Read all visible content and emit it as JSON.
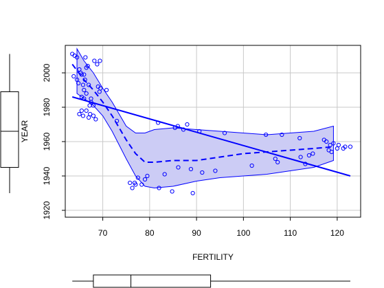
{
  "chart_data": {
    "type": "scatter",
    "xlabel": "FERTILITY",
    "ylabel": "YEAR",
    "xlim": [
      62,
      125
    ],
    "ylim": [
      1916,
      2016
    ],
    "xticks": [
      70,
      80,
      90,
      100,
      110,
      120
    ],
    "yticks": [
      1920,
      1940,
      1960,
      1980,
      2000
    ],
    "grid": true,
    "colors": {
      "points": "#0000ff",
      "lines": "#0000ff",
      "band": "#ccccf5",
      "grid": "#c8c8c8"
    },
    "points": [
      [
        63.5,
        2011
      ],
      [
        64.0,
        2010
      ],
      [
        64.5,
        2009
      ],
      [
        63.8,
        1998
      ],
      [
        64.5,
        1996
      ],
      [
        64.8,
        1994
      ],
      [
        65.0,
        2002
      ],
      [
        65.3,
        2000
      ],
      [
        65.5,
        1999
      ],
      [
        66.0,
        1999
      ],
      [
        66.3,
        2009
      ],
      [
        66.5,
        2003
      ],
      [
        66.8,
        2004
      ],
      [
        66.2,
        1996
      ],
      [
        65.8,
        1993
      ],
      [
        66.0,
        1990
      ],
      [
        66.5,
        1988
      ],
      [
        66.0,
        1985
      ],
      [
        65.5,
        1986
      ],
      [
        67.0,
        1993
      ],
      [
        67.5,
        1985
      ],
      [
        67.2,
        1981
      ],
      [
        67.5,
        1983
      ],
      [
        66.5,
        1978
      ],
      [
        65.5,
        1978
      ],
      [
        65.0,
        1976
      ],
      [
        65.8,
        1975
      ],
      [
        67.0,
        1974
      ],
      [
        67.3,
        1976
      ],
      [
        68.0,
        1975
      ],
      [
        68.5,
        1973
      ],
      [
        68.0,
        1981
      ],
      [
        68.2,
        2007
      ],
      [
        68.8,
        2005
      ],
      [
        69.4,
        2007
      ],
      [
        69.0,
        1992
      ],
      [
        69.5,
        1991
      ],
      [
        69.3,
        1989
      ],
      [
        70.8,
        1990
      ],
      [
        73.0,
        1972
      ],
      [
        75.8,
        1936
      ],
      [
        76.3,
        1933
      ],
      [
        76.8,
        1936
      ],
      [
        77.0,
        1935
      ],
      [
        77.5,
        1939
      ],
      [
        78.3,
        1935
      ],
      [
        79.0,
        1938
      ],
      [
        79.5,
        1940
      ],
      [
        81.8,
        1971
      ],
      [
        82.0,
        1933
      ],
      [
        83.2,
        1941
      ],
      [
        84.8,
        1931
      ],
      [
        85.4,
        1968
      ],
      [
        86.0,
        1969
      ],
      [
        86.1,
        1945
      ],
      [
        87.2,
        1967
      ],
      [
        88.0,
        1970
      ],
      [
        88.8,
        1944
      ],
      [
        89.2,
        1930
      ],
      [
        90.6,
        1966
      ],
      [
        91.2,
        1942
      ],
      [
        94.0,
        1943
      ],
      [
        96.0,
        1965
      ],
      [
        101.8,
        1946
      ],
      [
        104.8,
        1964
      ],
      [
        106.8,
        1950
      ],
      [
        107.3,
        1948
      ],
      [
        108.2,
        1964
      ],
      [
        112.0,
        1962
      ],
      [
        112.2,
        1951
      ],
      [
        113.2,
        1947
      ],
      [
        114.0,
        1952
      ],
      [
        114.8,
        1953
      ],
      [
        117.2,
        1961
      ],
      [
        117.7,
        1960
      ],
      [
        118.2,
        1955
      ],
      [
        118.5,
        1958
      ],
      [
        118.8,
        1954
      ],
      [
        119.2,
        1959
      ],
      [
        120.0,
        1956
      ],
      [
        120.3,
        1958
      ],
      [
        121.3,
        1956
      ],
      [
        121.7,
        1957
      ],
      [
        122.8,
        1957
      ]
    ],
    "regression_line": {
      "x": [
        63.5,
        122.8
      ],
      "y": [
        1986,
        1940
      ]
    },
    "smooth_line": {
      "x": [
        63.5,
        66.0,
        68.0,
        70.0,
        72.0,
        75.0,
        77.0,
        79.0,
        81.0,
        85.0,
        90.0,
        95.0,
        100.0,
        105.0,
        110.0,
        115.0,
        119.2
      ],
      "y": [
        2005,
        1996,
        1990,
        1983,
        1975,
        1961,
        1953,
        1948,
        1948,
        1949,
        1949,
        1951,
        1953,
        1954,
        1955,
        1956,
        1957
      ]
    },
    "confidence_band": {
      "x": [
        64.5,
        66.0,
        68.0,
        70.0,
        72.0,
        75.0,
        77.0,
        79.0,
        81.0,
        85.0,
        90.0,
        95.0,
        100.0,
        105.0,
        110.0,
        115.0,
        119.2
      ],
      "upper": [
        2014,
        2007,
        2000,
        1991,
        1983,
        1969,
        1965,
        1965,
        1967,
        1968,
        1967,
        1966,
        1965,
        1964,
        1965,
        1966,
        1969
      ],
      "lower": [
        1988,
        1985,
        1981,
        1975,
        1966,
        1950,
        1940,
        1934,
        1933,
        1934,
        1937,
        1939,
        1940,
        1941,
        1943,
        1945,
        1949
      ]
    },
    "x_boxplot": {
      "whisker_low": 63.5,
      "q1": 68.0,
      "median": 76.0,
      "q3": 93.0,
      "whisker_high": 122.8
    },
    "y_boxplot": {
      "whisker_low": 1930,
      "q1": 1945,
      "median": 1966,
      "q3": 1989,
      "whisker_high": 2011
    }
  }
}
